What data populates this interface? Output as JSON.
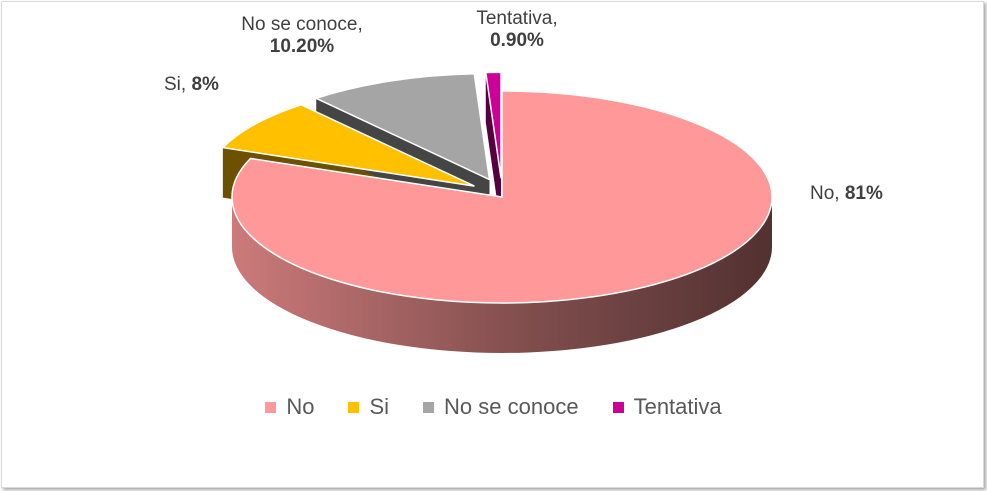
{
  "chart_data": {
    "type": "pie",
    "title": "",
    "slices": [
      {
        "name": "No",
        "value": 81,
        "label_name": "No,",
        "label_value": "81%",
        "color": "#FF9999"
      },
      {
        "name": "Si",
        "value": 8,
        "label_name": "Si,",
        "label_value": "8%",
        "color": "#FFC000"
      },
      {
        "name": "No se conoce",
        "value": 10.2,
        "label_name": "No se conoce,",
        "label_value": "10.20%",
        "color": "#A5A5A5"
      },
      {
        "name": "Tentativa",
        "value": 0.9,
        "label_name": "Tentativa,",
        "label_value": "0.90%",
        "color": "#CC0099"
      }
    ],
    "legend_placement": "bottom"
  }
}
